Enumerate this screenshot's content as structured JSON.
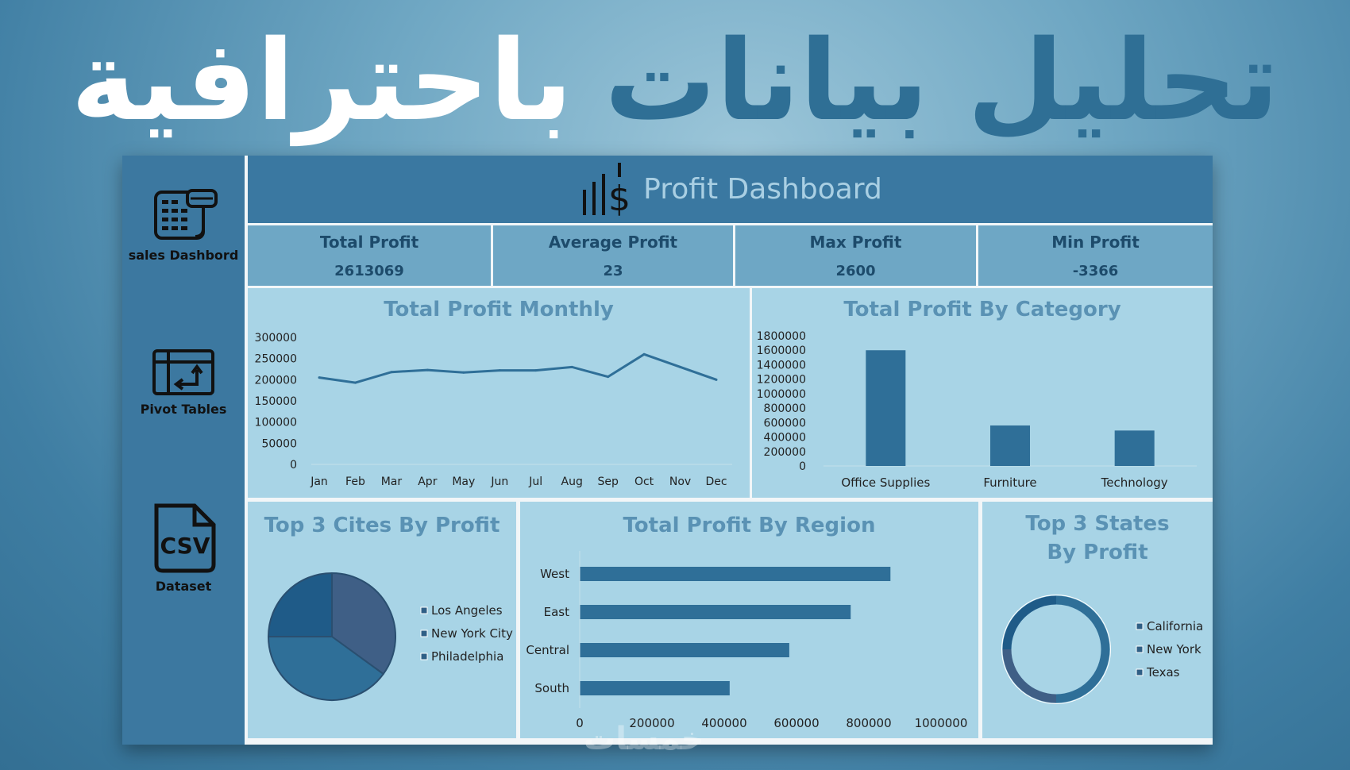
{
  "headline": {
    "part1": "تحليل بيانات",
    "part2": "باحترافية"
  },
  "sidebar": {
    "items": [
      {
        "label": "sales Dashbord",
        "icon": "calculator-icon"
      },
      {
        "label": "Pivot Tables",
        "icon": "pivot-table-icon"
      },
      {
        "label": "Dataset",
        "icon": "csv-file-icon"
      }
    ]
  },
  "header": {
    "title": "Profit Dashboard",
    "icon": "dollar-chart-icon"
  },
  "kpis": [
    {
      "label": "Total Profit",
      "value": "2613069"
    },
    {
      "label": "Average Profit",
      "value": "23"
    },
    {
      "label": "Max Profit",
      "value": "2600"
    },
    {
      "label": "Min Profit",
      "value": "-3366"
    }
  ],
  "colors": {
    "dark": "#2f6f98",
    "navy": "#1f5b88",
    "slate": "#3f5f86",
    "panel": "#a8d4e6",
    "title": "#5a92b4"
  },
  "watermark": "خمسات",
  "chart_data": [
    {
      "type": "line",
      "title": "Total Profit Monthly",
      "categories": [
        "Jan",
        "Feb",
        "Mar",
        "Apr",
        "May",
        "Jun",
        "Jul",
        "Aug",
        "Sep",
        "Oct",
        "Nov",
        "Dec"
      ],
      "values": [
        205000,
        193000,
        218000,
        223000,
        217000,
        222000,
        222000,
        230000,
        207000,
        260000,
        230000,
        200000
      ],
      "yticks": [
        0,
        50000,
        100000,
        150000,
        200000,
        250000,
        300000
      ],
      "ylim": [
        0,
        300000
      ],
      "grid": false
    },
    {
      "type": "bar",
      "title": "Total Profit By Category",
      "categories": [
        "Office Supplies",
        "Furniture",
        "Technology"
      ],
      "values": [
        1600000,
        560000,
        490000
      ],
      "yticks": [
        0,
        200000,
        400000,
        600000,
        800000,
        1000000,
        1200000,
        1400000,
        1600000,
        1800000
      ],
      "ylim": [
        0,
        1800000
      ]
    },
    {
      "type": "pie",
      "title": "Top 3 Cites By Profit",
      "categories": [
        "Los Angeles",
        "New York City",
        "Philadelphia"
      ],
      "values": [
        25,
        35,
        40
      ],
      "legend": "right"
    },
    {
      "type": "bar",
      "orientation": "horizontal",
      "title": "Total Profit By Region",
      "categories": [
        "West",
        "East",
        "Central",
        "South"
      ],
      "values": [
        860000,
        750000,
        580000,
        415000
      ],
      "xticks": [
        0,
        200000,
        400000,
        600000,
        800000,
        1000000
      ],
      "xlim": [
        0,
        1000000
      ]
    },
    {
      "type": "pie",
      "variant": "donut",
      "title": "Top 3 States By Profit",
      "categories": [
        "California",
        "New York",
        "Texas"
      ],
      "values": [
        50,
        25,
        25
      ],
      "legend": "right"
    }
  ]
}
